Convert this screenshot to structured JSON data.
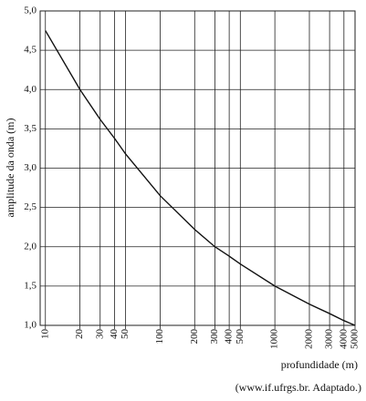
{
  "chart_data": {
    "type": "line",
    "y_label": "amplitude da onda (m)",
    "x_label": "profundidade (m)",
    "source": "(www.if.ufrgs.br. Adaptado.)",
    "x_scale": "log",
    "xlim": [
      9,
      5000
    ],
    "ylim": [
      1,
      5
    ],
    "grid": true,
    "xticks": [
      10,
      20,
      30,
      40,
      50,
      100,
      200,
      300,
      400,
      500,
      1000,
      2000,
      3000,
      4000,
      5000
    ],
    "yticks": [
      {
        "value": 1,
        "label": "1,0"
      },
      {
        "value": 1.5,
        "label": "1,5"
      },
      {
        "value": 2,
        "label": "2,0"
      },
      {
        "value": 2.5,
        "label": "2,5"
      },
      {
        "value": 3,
        "label": "3,0"
      },
      {
        "value": 3.5,
        "label": "3,5"
      },
      {
        "value": 4,
        "label": "4,0"
      },
      {
        "value": 4.5,
        "label": "4,5"
      },
      {
        "value": 5,
        "label": "5,0"
      }
    ],
    "x": [
      10,
      20,
      30,
      40,
      50,
      100,
      200,
      300,
      400,
      500,
      1000,
      2000,
      3000,
      4000,
      5000
    ],
    "series": [
      {
        "color": "#111111",
        "values": [
          4.75,
          4.0,
          3.62,
          3.38,
          3.18,
          2.65,
          2.22,
          2.0,
          1.88,
          1.78,
          1.5,
          1.27,
          1.15,
          1.06,
          1.0
        ]
      }
    ]
  }
}
